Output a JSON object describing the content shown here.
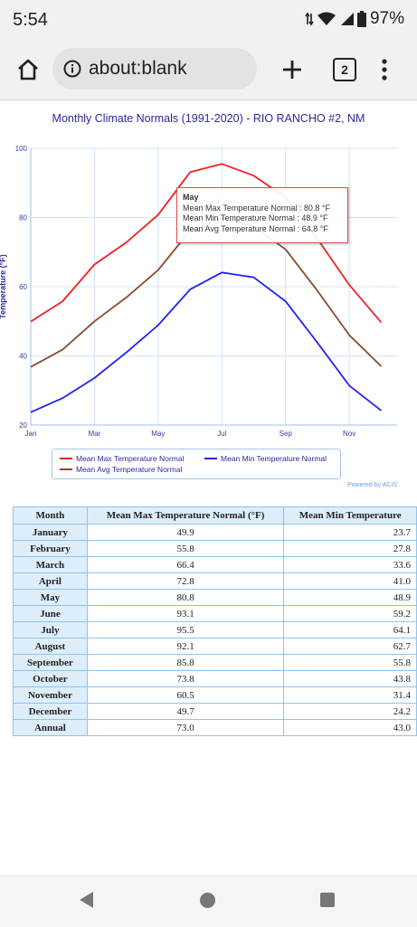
{
  "status": {
    "time": "5:54",
    "battery": "97%"
  },
  "browser": {
    "url": "about:blank",
    "tab_count": "2"
  },
  "colors": {
    "max": "#ee2222",
    "min": "#2222ee",
    "avg": "#8b4a2b",
    "grid": "#cfe3f7"
  },
  "chart_data": {
    "type": "line",
    "title": "Monthly Climate Normals (1991-2020) - RIO RANCHO #2, NM",
    "xlabel": "",
    "ylabel": "Temperature (°F)",
    "categories": [
      "Jan",
      "Feb",
      "Mar",
      "Apr",
      "May",
      "Jun",
      "Jul",
      "Aug",
      "Sep",
      "Oct",
      "Nov",
      "Dec"
    ],
    "x_tick_labels": [
      "Jan",
      "Mar",
      "May",
      "Jul",
      "Sep",
      "Nov"
    ],
    "ylim": [
      20,
      100
    ],
    "y_ticks": [
      20,
      40,
      60,
      80,
      100
    ],
    "grid": true,
    "legend_position": "bottom",
    "series": [
      {
        "name": "Mean Max Temperature Normal",
        "color": "#ee2222",
        "values": [
          49.9,
          55.8,
          66.4,
          72.8,
          80.8,
          93.1,
          95.5,
          92.1,
          85.8,
          73.8,
          60.5,
          49.7
        ]
      },
      {
        "name": "Mean Min Temperature Normal",
        "color": "#2222ee",
        "values": [
          23.7,
          27.8,
          33.6,
          41.0,
          48.9,
          59.2,
          64.1,
          62.7,
          55.8,
          43.8,
          31.4,
          24.2
        ]
      },
      {
        "name": "Mean Avg Temperature Normal",
        "color": "#8b4a2b",
        "values": [
          36.8,
          41.8,
          50.0,
          56.9,
          64.8,
          76.2,
          79.8,
          77.4,
          70.8,
          58.8,
          46.0,
          37.0
        ]
      }
    ],
    "tooltip": {
      "title": "May",
      "lines": [
        "Mean Max Temperature Normal : 80.8 °F",
        "Mean Min Temperature Normal : 48.9 °F",
        "Mean Avg Temperature Normal : 64.8 °F"
      ]
    },
    "credit": "Powered by ACIS"
  },
  "table": {
    "headers": [
      "Month",
      "Mean Max Temperature Normal (°F)",
      "Mean Min Temperature"
    ],
    "rows": [
      [
        "January",
        "49.9",
        "23.7"
      ],
      [
        "February",
        "55.8",
        "27.8"
      ],
      [
        "March",
        "66.4",
        "33.6"
      ],
      [
        "April",
        "72.8",
        "41.0"
      ],
      [
        "May",
        "80.8",
        "48.9"
      ],
      [
        "June",
        "93.1",
        "59.2"
      ],
      [
        "July",
        "95.5",
        "64.1"
      ],
      [
        "August",
        "92.1",
        "62.7"
      ],
      [
        "September",
        "85.8",
        "55.8"
      ],
      [
        "October",
        "73.8",
        "43.8"
      ],
      [
        "November",
        "60.5",
        "31.4"
      ],
      [
        "December",
        "49.7",
        "24.2"
      ],
      [
        "Annual",
        "73.0",
        "43.0"
      ]
    ]
  }
}
